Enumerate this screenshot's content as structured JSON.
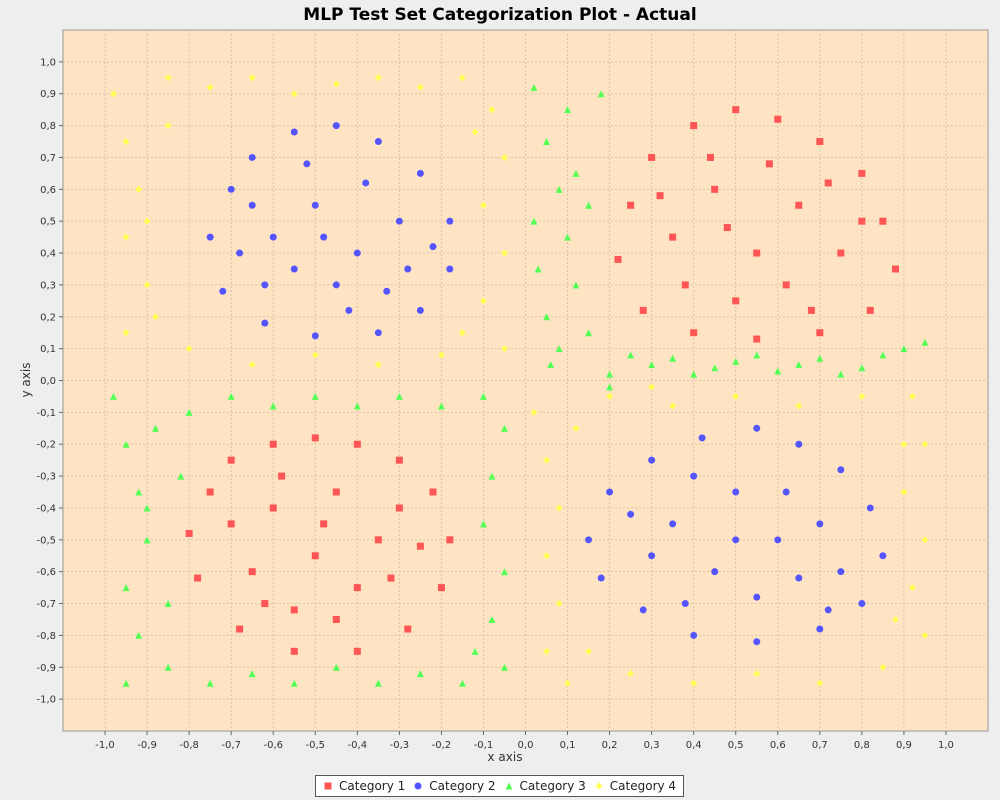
{
  "chart_data": {
    "type": "scatter",
    "title": "MLP Test Set Categorization Plot - Actual",
    "xlabel": "x axis",
    "ylabel": "y axis",
    "xlim": [
      -1.1,
      1.1
    ],
    "ylim": [
      -1.1,
      1.1
    ],
    "grid": true,
    "legend_position": "bottom",
    "plot_background": "#ffe4c4",
    "x_ticks": [
      "-1,0",
      "-0,9",
      "-0,8",
      "-0,7",
      "-0,6",
      "-0,5",
      "-0,4",
      "-0,3",
      "-0,2",
      "-0,1",
      "0,0",
      "0,1",
      "0,2",
      "0,3",
      "0,4",
      "0,5",
      "0,6",
      "0,7",
      "0,8",
      "0,9",
      "1,0"
    ],
    "y_ticks": [
      "1,0",
      "0,9",
      "0,8",
      "0,7",
      "0,6",
      "0,5",
      "0,4",
      "0,3",
      "0,2",
      "0,1",
      "0,0",
      "-0,1",
      "-0,2",
      "-0,3",
      "-0,4",
      "-0,5",
      "-0,6",
      "-0,7",
      "-0,8",
      "-0,9",
      "-1,0"
    ],
    "series": [
      {
        "name": "Category 1",
        "color": "#ff5555",
        "marker": "square",
        "points": [
          [
            0.25,
            0.55
          ],
          [
            0.3,
            0.7
          ],
          [
            0.4,
            0.8
          ],
          [
            0.5,
            0.85
          ],
          [
            0.6,
            0.82
          ],
          [
            0.7,
            0.75
          ],
          [
            0.8,
            0.65
          ],
          [
            0.85,
            0.5
          ],
          [
            0.88,
            0.35
          ],
          [
            0.82,
            0.22
          ],
          [
            0.7,
            0.15
          ],
          [
            0.55,
            0.13
          ],
          [
            0.4,
            0.15
          ],
          [
            0.28,
            0.22
          ],
          [
            0.22,
            0.38
          ],
          [
            0.35,
            0.45
          ],
          [
            0.45,
            0.6
          ],
          [
            0.55,
            0.4
          ],
          [
            0.65,
            0.55
          ],
          [
            0.75,
            0.4
          ],
          [
            0.5,
            0.25
          ],
          [
            0.62,
            0.3
          ],
          [
            0.38,
            0.3
          ],
          [
            0.32,
            0.58
          ],
          [
            0.72,
            0.62
          ],
          [
            0.58,
            0.68
          ],
          [
            0.44,
            0.7
          ],
          [
            0.8,
            0.5
          ],
          [
            0.48,
            0.48
          ],
          [
            0.68,
            0.22
          ],
          [
            -0.75,
            -0.35
          ],
          [
            -0.7,
            -0.25
          ],
          [
            -0.6,
            -0.2
          ],
          [
            -0.5,
            -0.18
          ],
          [
            -0.4,
            -0.2
          ],
          [
            -0.3,
            -0.25
          ],
          [
            -0.22,
            -0.35
          ],
          [
            -0.18,
            -0.5
          ],
          [
            -0.2,
            -0.65
          ],
          [
            -0.28,
            -0.78
          ],
          [
            -0.4,
            -0.85
          ],
          [
            -0.55,
            -0.85
          ],
          [
            -0.68,
            -0.78
          ],
          [
            -0.78,
            -0.62
          ],
          [
            -0.8,
            -0.48
          ],
          [
            -0.6,
            -0.4
          ],
          [
            -0.45,
            -0.35
          ],
          [
            -0.35,
            -0.5
          ],
          [
            -0.5,
            -0.55
          ],
          [
            -0.65,
            -0.6
          ],
          [
            -0.4,
            -0.65
          ],
          [
            -0.55,
            -0.72
          ],
          [
            -0.3,
            -0.4
          ],
          [
            -0.7,
            -0.45
          ],
          [
            -0.48,
            -0.45
          ],
          [
            -0.58,
            -0.3
          ],
          [
            -0.32,
            -0.62
          ],
          [
            -0.25,
            -0.52
          ],
          [
            -0.62,
            -0.7
          ],
          [
            -0.45,
            -0.75
          ]
        ]
      },
      {
        "name": "Category 2",
        "color": "#5555ff",
        "marker": "circle",
        "points": [
          [
            -0.75,
            0.45
          ],
          [
            -0.7,
            0.6
          ],
          [
            -0.65,
            0.7
          ],
          [
            -0.55,
            0.78
          ],
          [
            -0.45,
            0.8
          ],
          [
            -0.35,
            0.75
          ],
          [
            -0.25,
            0.65
          ],
          [
            -0.18,
            0.5
          ],
          [
            -0.18,
            0.35
          ],
          [
            -0.25,
            0.22
          ],
          [
            -0.35,
            0.15
          ],
          [
            -0.5,
            0.14
          ],
          [
            -0.62,
            0.18
          ],
          [
            -0.72,
            0.28
          ],
          [
            -0.6,
            0.45
          ],
          [
            -0.5,
            0.55
          ],
          [
            -0.4,
            0.4
          ],
          [
            -0.3,
            0.5
          ],
          [
            -0.45,
            0.3
          ],
          [
            -0.55,
            0.35
          ],
          [
            -0.65,
            0.55
          ],
          [
            -0.38,
            0.62
          ],
          [
            -0.28,
            0.35
          ],
          [
            -0.52,
            0.68
          ],
          [
            -0.42,
            0.22
          ],
          [
            -0.62,
            0.3
          ],
          [
            -0.22,
            0.42
          ],
          [
            -0.48,
            0.45
          ],
          [
            -0.33,
            0.28
          ],
          [
            -0.68,
            0.4
          ],
          [
            0.15,
            -0.5
          ],
          [
            0.2,
            -0.35
          ],
          [
            0.3,
            -0.25
          ],
          [
            0.42,
            -0.18
          ],
          [
            0.55,
            -0.15
          ],
          [
            0.65,
            -0.2
          ],
          [
            0.75,
            -0.28
          ],
          [
            0.82,
            -0.4
          ],
          [
            0.85,
            -0.55
          ],
          [
            0.8,
            -0.7
          ],
          [
            0.7,
            -0.78
          ],
          [
            0.55,
            -0.82
          ],
          [
            0.4,
            -0.8
          ],
          [
            0.28,
            -0.72
          ],
          [
            0.18,
            -0.62
          ],
          [
            0.35,
            -0.45
          ],
          [
            0.5,
            -0.35
          ],
          [
            0.6,
            -0.5
          ],
          [
            0.45,
            -0.6
          ],
          [
            0.7,
            -0.45
          ],
          [
            0.3,
            -0.55
          ],
          [
            0.55,
            -0.68
          ],
          [
            0.65,
            -0.62
          ],
          [
            0.4,
            -0.3
          ],
          [
            0.75,
            -0.6
          ],
          [
            0.25,
            -0.42
          ],
          [
            0.5,
            -0.5
          ],
          [
            0.62,
            -0.35
          ],
          [
            0.38,
            -0.7
          ],
          [
            0.72,
            -0.72
          ]
        ]
      },
      {
        "name": "Category 3",
        "color": "#55ff55",
        "marker": "triangle",
        "points": [
          [
            0.02,
            0.92
          ],
          [
            0.05,
            0.75
          ],
          [
            0.08,
            0.6
          ],
          [
            0.1,
            0.45
          ],
          [
            0.12,
            0.3
          ],
          [
            0.15,
            0.15
          ],
          [
            0.02,
            0.5
          ],
          [
            0.05,
            0.2
          ],
          [
            0.1,
            0.85
          ],
          [
            0.18,
            0.9
          ],
          [
            0.12,
            0.65
          ],
          [
            0.03,
            0.35
          ],
          [
            0.08,
            0.1
          ],
          [
            0.15,
            0.55
          ],
          [
            0.06,
            0.05
          ],
          [
            0.2,
            0.02
          ],
          [
            0.3,
            0.05
          ],
          [
            0.4,
            0.02
          ],
          [
            0.5,
            0.06
          ],
          [
            0.6,
            0.03
          ],
          [
            0.7,
            0.07
          ],
          [
            0.8,
            0.04
          ],
          [
            0.9,
            0.1
          ],
          [
            0.95,
            0.12
          ],
          [
            0.25,
            0.08
          ],
          [
            0.35,
            0.07
          ],
          [
            0.45,
            0.04
          ],
          [
            0.55,
            0.08
          ],
          [
            0.65,
            0.05
          ],
          [
            0.75,
            0.02
          ],
          [
            0.85,
            0.08
          ],
          [
            0.2,
            -0.02
          ],
          [
            -0.98,
            -0.05
          ],
          [
            -0.95,
            -0.2
          ],
          [
            -0.92,
            -0.35
          ],
          [
            -0.9,
            -0.5
          ],
          [
            -0.95,
            -0.65
          ],
          [
            -0.92,
            -0.8
          ],
          [
            -0.95,
            -0.95
          ],
          [
            -0.85,
            -0.9
          ],
          [
            -0.75,
            -0.95
          ],
          [
            -0.65,
            -0.92
          ],
          [
            -0.55,
            -0.95
          ],
          [
            -0.45,
            -0.9
          ],
          [
            -0.35,
            -0.95
          ],
          [
            -0.25,
            -0.92
          ],
          [
            -0.15,
            -0.95
          ],
          [
            -0.05,
            -0.9
          ],
          [
            -0.08,
            -0.75
          ],
          [
            -0.05,
            -0.6
          ],
          [
            -0.1,
            -0.45
          ],
          [
            -0.08,
            -0.3
          ],
          [
            -0.05,
            -0.15
          ],
          [
            -0.1,
            -0.05
          ],
          [
            -0.2,
            -0.08
          ],
          [
            -0.3,
            -0.05
          ],
          [
            -0.4,
            -0.08
          ],
          [
            -0.5,
            -0.05
          ],
          [
            -0.6,
            -0.08
          ],
          [
            -0.7,
            -0.05
          ],
          [
            -0.8,
            -0.1
          ],
          [
            -0.88,
            -0.15
          ],
          [
            -0.85,
            -0.7
          ],
          [
            -0.12,
            -0.85
          ],
          [
            -0.9,
            -0.4
          ],
          [
            -0.82,
            -0.3
          ]
        ]
      },
      {
        "name": "Category 4",
        "color": "#ffff55",
        "marker": "diamond",
        "points": [
          [
            -0.98,
            0.9
          ],
          [
            -0.95,
            0.75
          ],
          [
            -0.92,
            0.6
          ],
          [
            -0.95,
            0.45
          ],
          [
            -0.9,
            0.3
          ],
          [
            -0.95,
            0.15
          ],
          [
            -0.85,
            0.95
          ],
          [
            -0.75,
            0.92
          ],
          [
            -0.65,
            0.95
          ],
          [
            -0.55,
            0.9
          ],
          [
            -0.45,
            0.93
          ],
          [
            -0.35,
            0.95
          ],
          [
            -0.25,
            0.92
          ],
          [
            -0.15,
            0.95
          ],
          [
            -0.08,
            0.85
          ],
          [
            -0.05,
            0.7
          ],
          [
            -0.1,
            0.55
          ],
          [
            -0.05,
            0.4
          ],
          [
            -0.1,
            0.25
          ],
          [
            -0.05,
            0.1
          ],
          [
            -0.2,
            0.08
          ],
          [
            -0.35,
            0.05
          ],
          [
            -0.5,
            0.08
          ],
          [
            -0.65,
            0.05
          ],
          [
            -0.8,
            0.1
          ],
          [
            -0.88,
            0.2
          ],
          [
            -0.85,
            0.8
          ],
          [
            -0.12,
            0.78
          ],
          [
            -0.9,
            0.5
          ],
          [
            -0.15,
            0.15
          ],
          [
            0.02,
            -0.1
          ],
          [
            0.05,
            -0.25
          ],
          [
            0.08,
            -0.4
          ],
          [
            0.05,
            -0.55
          ],
          [
            0.08,
            -0.7
          ],
          [
            0.05,
            -0.85
          ],
          [
            0.1,
            -0.95
          ],
          [
            0.25,
            -0.92
          ],
          [
            0.4,
            -0.95
          ],
          [
            0.55,
            -0.92
          ],
          [
            0.7,
            -0.95
          ],
          [
            0.85,
            -0.9
          ],
          [
            0.95,
            -0.8
          ],
          [
            0.92,
            -0.65
          ],
          [
            0.95,
            -0.5
          ],
          [
            0.9,
            -0.35
          ],
          [
            0.95,
            -0.2
          ],
          [
            0.92,
            -0.05
          ],
          [
            0.8,
            -0.05
          ],
          [
            0.65,
            -0.08
          ],
          [
            0.5,
            -0.05
          ],
          [
            0.35,
            -0.08
          ],
          [
            0.2,
            -0.05
          ],
          [
            0.12,
            -0.15
          ],
          [
            0.88,
            -0.75
          ],
          [
            0.15,
            -0.85
          ],
          [
            0.9,
            -0.2
          ],
          [
            0.3,
            -0.02
          ]
        ]
      }
    ]
  }
}
